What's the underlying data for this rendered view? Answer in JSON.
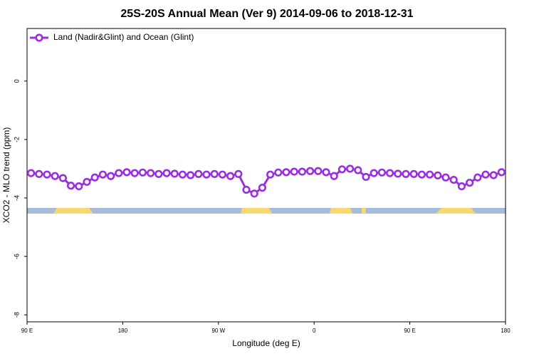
{
  "chart_data": {
    "type": "line",
    "title": "25S-20S Annual Mean (Ver 9)   2014-09-06 to 2018-12-31",
    "xlabel": "Longitude (deg E)",
    "ylabel": "XCO2 - MLO trend (ppm)",
    "x": [
      93.75,
      101.25,
      108.75,
      116.25,
      123.75,
      131.25,
      138.75,
      146.25,
      153.75,
      161.25,
      168.75,
      176.25,
      183.75,
      191.25,
      198.75,
      206.25,
      213.75,
      221.25,
      228.75,
      236.25,
      243.75,
      251.25,
      258.75,
      266.25,
      273.75,
      281.25,
      288.75,
      296.25,
      303.75,
      311.25,
      318.75,
      326.25,
      333.75,
      341.25,
      348.75,
      356.25,
      363.75,
      371.25,
      378.75,
      386.25,
      393.75,
      401.25,
      408.75,
      416.25,
      423.75,
      431.25,
      438.75,
      446.25,
      453.75,
      461.25,
      468.75,
      476.25,
      483.75,
      491.25,
      498.75,
      506.25,
      513.75,
      521.25,
      528.75,
      536.25
    ],
    "series": [
      {
        "name": "Land (Nadir&Glint) and Ocean (Glint)",
        "color": "#9b2fe0",
        "values": [
          -3.15,
          -3.18,
          -3.2,
          -3.25,
          -3.32,
          -3.58,
          -3.6,
          -3.45,
          -3.3,
          -3.2,
          -3.25,
          -3.15,
          -3.12,
          -3.15,
          -3.13,
          -3.15,
          -3.18,
          -3.15,
          -3.17,
          -3.2,
          -3.22,
          -3.18,
          -3.2,
          -3.18,
          -3.2,
          -3.25,
          -3.18,
          -3.72,
          -3.85,
          -3.65,
          -3.2,
          -3.13,
          -3.12,
          -3.1,
          -3.1,
          -3.08,
          -3.08,
          -3.12,
          -3.25,
          -3.02,
          -3.0,
          -3.05,
          -3.28,
          -3.15,
          -3.13,
          -3.15,
          -3.17,
          -3.18,
          -3.18,
          -3.2,
          -3.2,
          -3.23,
          -3.3,
          -3.38,
          -3.6,
          -3.48,
          -3.3,
          -3.2,
          -3.22,
          -3.12
        ]
      }
    ],
    "xlim": [
      90,
      540
    ],
    "xticks": [
      {
        "value": 90,
        "label": "90 E"
      },
      180,
      {
        "value": 270,
        "label": "90 W"
      },
      {
        "value": 360,
        "label": "0"
      },
      {
        "value": 450,
        "label": "90 E"
      },
      {
        "value": 540,
        "label": "180"
      }
    ],
    "ylim": [
      -8.24,
      1.8
    ],
    "yticks": [
      0,
      -2,
      -4,
      -6,
      -8
    ],
    "legend": "upper left"
  }
}
